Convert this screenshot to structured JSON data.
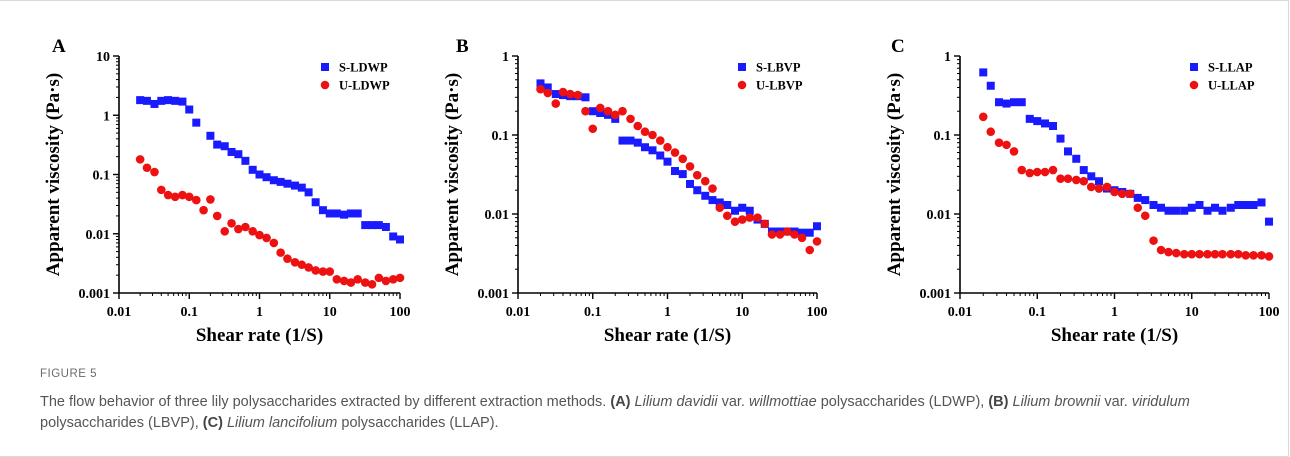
{
  "figure_label": "FIGURE 5",
  "caption": {
    "intro": "The flow behavior of three lily polysaccharides extracted by different extraction methods.",
    "a_tag": "(A)",
    "a_species": "Lilium davidii",
    "a_var": "var.",
    "a_variety": "willmottiae",
    "a_rest": "polysaccharides (LDWP),",
    "b_tag": "(B)",
    "b_species": "Lilium brownii",
    "b_var": "var.",
    "b_variety": "viridulum",
    "b_rest": "polysaccharides (LBVP),",
    "c_tag": "(C)",
    "c_species": "Lilium lancifolium",
    "c_rest": "polysaccharides (LLAP)."
  },
  "colors": {
    "s_series": "#1a1aff",
    "u_series": "#ee1111",
    "axis": "#000000"
  },
  "chart_data": [
    {
      "panel": "A",
      "type": "scatter",
      "xlabel": "Shear rate (1/S)",
      "ylabel": "Apparent viscosity (Pa·s)",
      "xscale": "log",
      "yscale": "log",
      "xlim": [
        0.01,
        100
      ],
      "ylim": [
        0.001,
        10
      ],
      "xticks": [
        "0.01",
        "0.1",
        "1",
        "10",
        "100"
      ],
      "yticks": [
        "0.001",
        "0.01",
        "0.1",
        "1",
        "10"
      ],
      "legend_position": "top-right",
      "series": [
        {
          "name": "S-LDWP",
          "marker": "square",
          "x": [
            0.02,
            0.025,
            0.032,
            0.04,
            0.05,
            0.063,
            0.08,
            0.1,
            0.126,
            0.2,
            0.25,
            0.32,
            0.4,
            0.5,
            0.63,
            0.8,
            1,
            1.26,
            1.6,
            2,
            2.5,
            3.2,
            4,
            5,
            6.3,
            8,
            10,
            12.6,
            16,
            20,
            25,
            32,
            40,
            50,
            63,
            80,
            100
          ],
          "y": [
            1.8,
            1.75,
            1.55,
            1.75,
            1.8,
            1.75,
            1.7,
            1.25,
            0.75,
            0.45,
            0.32,
            0.3,
            0.24,
            0.22,
            0.17,
            0.12,
            0.1,
            0.09,
            0.08,
            0.075,
            0.07,
            0.065,
            0.06,
            0.05,
            0.034,
            0.025,
            0.022,
            0.022,
            0.021,
            0.022,
            0.022,
            0.014,
            0.014,
            0.014,
            0.013,
            0.009,
            0.008
          ]
        },
        {
          "name": "U-LDWP",
          "marker": "circle",
          "x": [
            0.02,
            0.025,
            0.032,
            0.04,
            0.05,
            0.063,
            0.08,
            0.1,
            0.126,
            0.16,
            0.2,
            0.25,
            0.32,
            0.4,
            0.5,
            0.63,
            0.8,
            1,
            1.26,
            1.6,
            2,
            2.5,
            3.2,
            4,
            5,
            6.3,
            8,
            10,
            12.6,
            16,
            20,
            25,
            32,
            40,
            50,
            63,
            80,
            100
          ],
          "y": [
            0.18,
            0.13,
            0.11,
            0.055,
            0.045,
            0.042,
            0.045,
            0.042,
            0.037,
            0.025,
            0.038,
            0.02,
            0.011,
            0.015,
            0.012,
            0.013,
            0.011,
            0.0095,
            0.0085,
            0.007,
            0.0048,
            0.0038,
            0.0033,
            0.003,
            0.0027,
            0.0024,
            0.0023,
            0.0023,
            0.0017,
            0.0016,
            0.0015,
            0.0017,
            0.0015,
            0.0014,
            0.0018,
            0.0016,
            0.0017,
            0.0018
          ]
        }
      ]
    },
    {
      "panel": "B",
      "type": "scatter",
      "xlabel": "Shear rate (1/S)",
      "ylabel": "Apparent viscosity (Pa·s)",
      "xscale": "log",
      "yscale": "log",
      "xlim": [
        0.01,
        100
      ],
      "ylim": [
        0.001,
        1
      ],
      "xticks": [
        "0.01",
        "0.1",
        "1",
        "10",
        "100"
      ],
      "yticks": [
        "0.001",
        "0.01",
        "0.1",
        "1"
      ],
      "legend_position": "top-right",
      "series": [
        {
          "name": "S-LBVP",
          "marker": "square",
          "x": [
            0.02,
            0.025,
            0.032,
            0.04,
            0.05,
            0.063,
            0.08,
            0.1,
            0.126,
            0.16,
            0.2,
            0.25,
            0.32,
            0.4,
            0.5,
            0.63,
            0.8,
            1,
            1.26,
            1.6,
            2,
            2.5,
            3.2,
            4,
            5,
            6.3,
            8,
            10,
            12.6,
            16,
            20,
            25,
            32,
            40,
            50,
            63,
            80,
            100
          ],
          "y": [
            0.45,
            0.4,
            0.33,
            0.32,
            0.31,
            0.31,
            0.3,
            0.2,
            0.19,
            0.18,
            0.16,
            0.085,
            0.085,
            0.08,
            0.07,
            0.064,
            0.055,
            0.046,
            0.035,
            0.032,
            0.024,
            0.02,
            0.017,
            0.015,
            0.014,
            0.013,
            0.011,
            0.012,
            0.011,
            0.0085,
            0.0075,
            0.006,
            0.006,
            0.006,
            0.006,
            0.0058,
            0.0058,
            0.007
          ]
        },
        {
          "name": "U-LBVP",
          "marker": "circle",
          "x": [
            0.02,
            0.025,
            0.032,
            0.04,
            0.05,
            0.063,
            0.08,
            0.1,
            0.126,
            0.16,
            0.2,
            0.25,
            0.32,
            0.4,
            0.5,
            0.63,
            0.8,
            1,
            1.26,
            1.6,
            2,
            2.5,
            3.2,
            4,
            5,
            6.3,
            8,
            10,
            12.6,
            16,
            20,
            25,
            32,
            40,
            50,
            63,
            80,
            100
          ],
          "y": [
            0.38,
            0.34,
            0.25,
            0.35,
            0.33,
            0.32,
            0.2,
            0.12,
            0.22,
            0.2,
            0.18,
            0.2,
            0.16,
            0.13,
            0.11,
            0.1,
            0.085,
            0.07,
            0.06,
            0.05,
            0.04,
            0.031,
            0.026,
            0.021,
            0.012,
            0.0095,
            0.008,
            0.0085,
            0.009,
            0.009,
            0.0075,
            0.0055,
            0.0055,
            0.006,
            0.0055,
            0.005,
            0.0035,
            0.0045
          ]
        }
      ]
    },
    {
      "panel": "C",
      "type": "scatter",
      "xlabel": "Shear rate (1/S)",
      "ylabel": "Apparent viscosity (Pa·s)",
      "xscale": "log",
      "yscale": "log",
      "xlim": [
        0.01,
        100
      ],
      "ylim": [
        0.001,
        1
      ],
      "xticks": [
        "0.01",
        "0.1",
        "1",
        "10",
        "100"
      ],
      "yticks": [
        "0.001",
        "0.01",
        "0.1",
        "1"
      ],
      "legend_position": "top-right",
      "series": [
        {
          "name": "S-LLAP",
          "marker": "square",
          "x": [
            0.02,
            0.025,
            0.032,
            0.04,
            0.05,
            0.063,
            0.08,
            0.1,
            0.126,
            0.16,
            0.2,
            0.25,
            0.32,
            0.4,
            0.5,
            0.63,
            0.8,
            1,
            1.26,
            1.6,
            2,
            2.5,
            3.2,
            4,
            5,
            6.3,
            8,
            10,
            12.6,
            16,
            20,
            25,
            32,
            40,
            50,
            63,
            80,
            100
          ],
          "y": [
            0.62,
            0.42,
            0.26,
            0.25,
            0.26,
            0.26,
            0.16,
            0.15,
            0.14,
            0.13,
            0.09,
            0.062,
            0.05,
            0.036,
            0.03,
            0.026,
            0.021,
            0.02,
            0.019,
            0.018,
            0.016,
            0.015,
            0.013,
            0.012,
            0.011,
            0.011,
            0.011,
            0.012,
            0.013,
            0.011,
            0.012,
            0.011,
            0.012,
            0.013,
            0.013,
            0.013,
            0.014,
            0.008
          ]
        },
        {
          "name": "U-LLAP",
          "marker": "circle",
          "x": [
            0.02,
            0.025,
            0.032,
            0.04,
            0.05,
            0.063,
            0.08,
            0.1,
            0.126,
            0.16,
            0.2,
            0.25,
            0.32,
            0.4,
            0.5,
            0.63,
            0.8,
            1,
            1.26,
            1.6,
            2,
            2.5,
            3.2,
            4,
            5,
            6.3,
            8,
            10,
            12.6,
            16,
            20,
            25,
            32,
            40,
            50,
            63,
            80,
            100
          ],
          "y": [
            0.17,
            0.11,
            0.08,
            0.075,
            0.062,
            0.036,
            0.033,
            0.034,
            0.034,
            0.036,
            0.028,
            0.028,
            0.027,
            0.026,
            0.022,
            0.021,
            0.022,
            0.019,
            0.018,
            0.018,
            0.012,
            0.0095,
            0.0046,
            0.0035,
            0.0033,
            0.0032,
            0.0031,
            0.0031,
            0.0031,
            0.0031,
            0.0031,
            0.0031,
            0.0031,
            0.0031,
            0.003,
            0.003,
            0.003,
            0.0029
          ]
        }
      ]
    }
  ]
}
